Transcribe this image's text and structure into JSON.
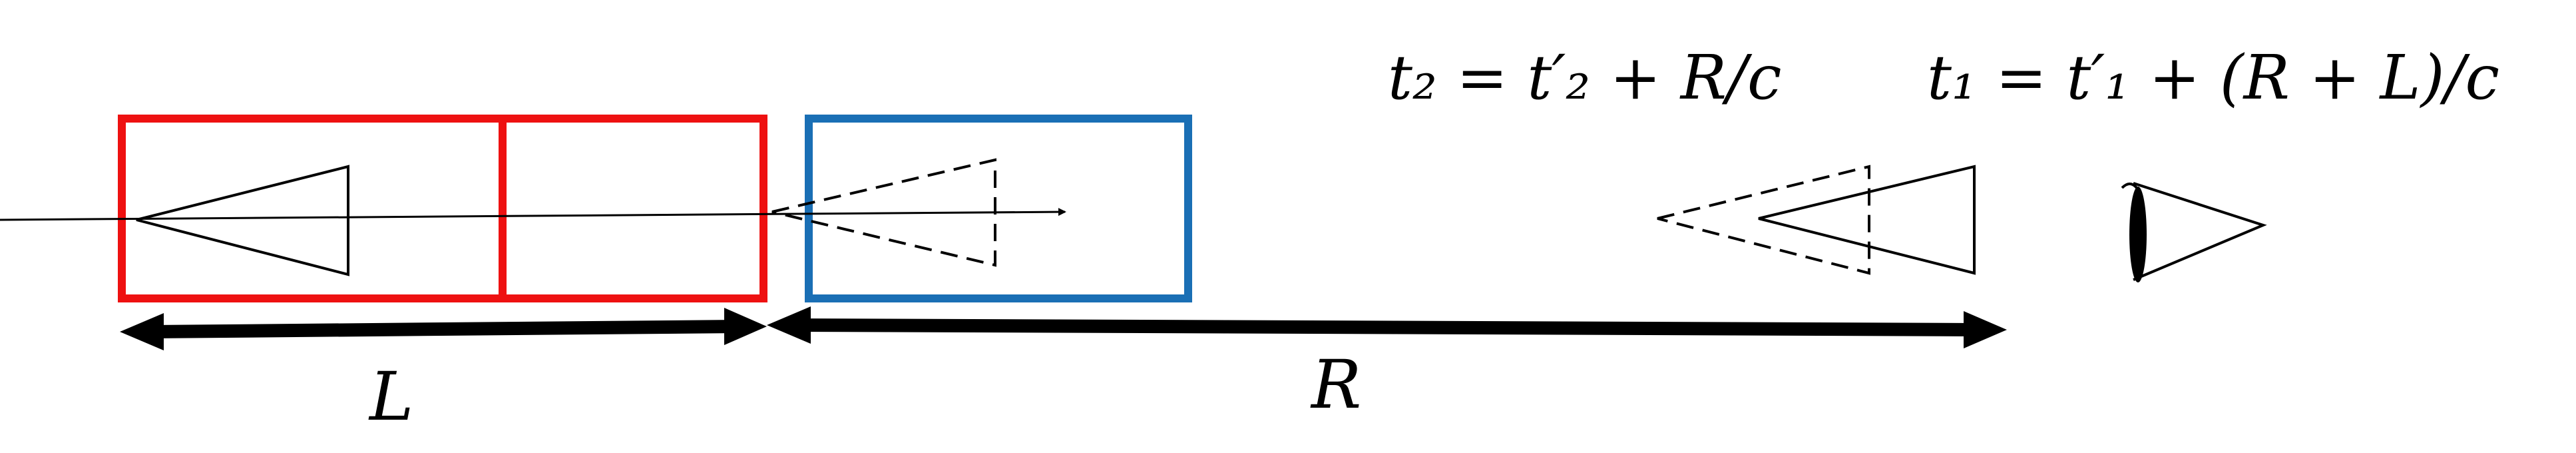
{
  "equations": {
    "t2": "t₂ = t′₂ + R/c",
    "t1": "t₁ = t′₁ + (R + L)/c"
  },
  "labels": {
    "L": "L",
    "R": "R"
  },
  "colors": {
    "red_box": "#ee1111",
    "blue_box": "#1a6fb5",
    "ink": "#000000"
  }
}
